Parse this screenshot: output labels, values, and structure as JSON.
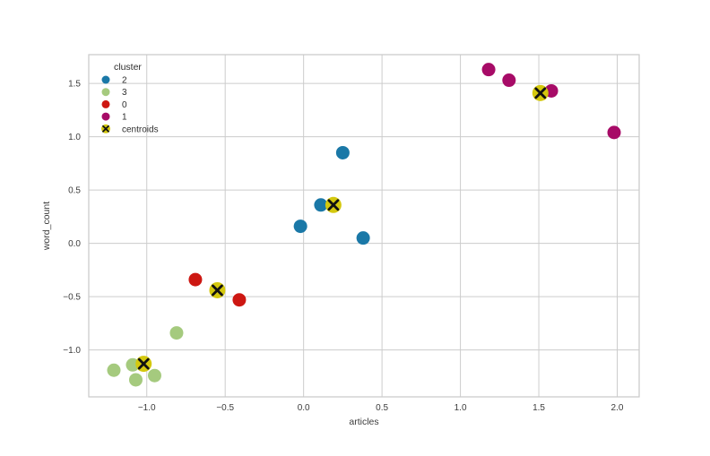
{
  "chart_data": {
    "type": "scatter",
    "title": "",
    "xlabel": "articles",
    "ylabel": "word_count",
    "xlim": [
      -1.37,
      2.14
    ],
    "ylim": [
      -1.44,
      1.77
    ],
    "xticks": [
      -1.0,
      -0.5,
      0.0,
      0.5,
      1.0,
      1.5,
      2.0
    ],
    "xtick_labels": [
      "−1.0",
      "−0.5",
      "0.0",
      "0.5",
      "1.0",
      "1.5",
      "2.0"
    ],
    "yticks": [
      1.5,
      1.0,
      0.5,
      0.0,
      -0.5,
      -1.0
    ],
    "ytick_labels": [
      "1.5",
      "1.0",
      "0.5",
      "0.0",
      "−0.5",
      "−1.0"
    ],
    "grid": true,
    "grid_color": "#cccccc",
    "border_color": "#c9c9c9",
    "background_color": "#ffffff",
    "legend": {
      "title": "cluster",
      "position": "upper-left",
      "items": [
        "2",
        "3",
        "0",
        "1",
        "centroids"
      ]
    },
    "series": [
      {
        "name": "2",
        "marker": "circle",
        "color": "#1a78a7",
        "points": [
          [
            0.25,
            0.85
          ],
          [
            0.11,
            0.36
          ],
          [
            -0.02,
            0.16
          ],
          [
            0.38,
            0.05
          ]
        ]
      },
      {
        "name": "3",
        "marker": "circle",
        "color": "#a5ca7e",
        "points": [
          [
            -0.81,
            -0.84
          ],
          [
            -1.21,
            -1.19
          ],
          [
            -1.09,
            -1.14
          ],
          [
            -1.07,
            -1.28
          ],
          [
            -0.95,
            -1.24
          ]
        ]
      },
      {
        "name": "0",
        "marker": "circle",
        "color": "#cd1712",
        "points": [
          [
            -0.69,
            -0.34
          ],
          [
            -0.41,
            -0.53
          ]
        ]
      },
      {
        "name": "1",
        "marker": "circle",
        "color": "#a70b67",
        "points": [
          [
            1.18,
            1.63
          ],
          [
            1.31,
            1.53
          ],
          [
            1.58,
            1.43
          ],
          [
            1.98,
            1.04
          ]
        ]
      },
      {
        "name": "centroids",
        "marker": "circle-x",
        "color": "#d4c80e",
        "x_color": "#111111",
        "points": [
          [
            0.19,
            0.36
          ],
          [
            -1.02,
            -1.13
          ],
          [
            -0.55,
            -0.44
          ],
          [
            1.51,
            1.41
          ]
        ]
      }
    ]
  }
}
